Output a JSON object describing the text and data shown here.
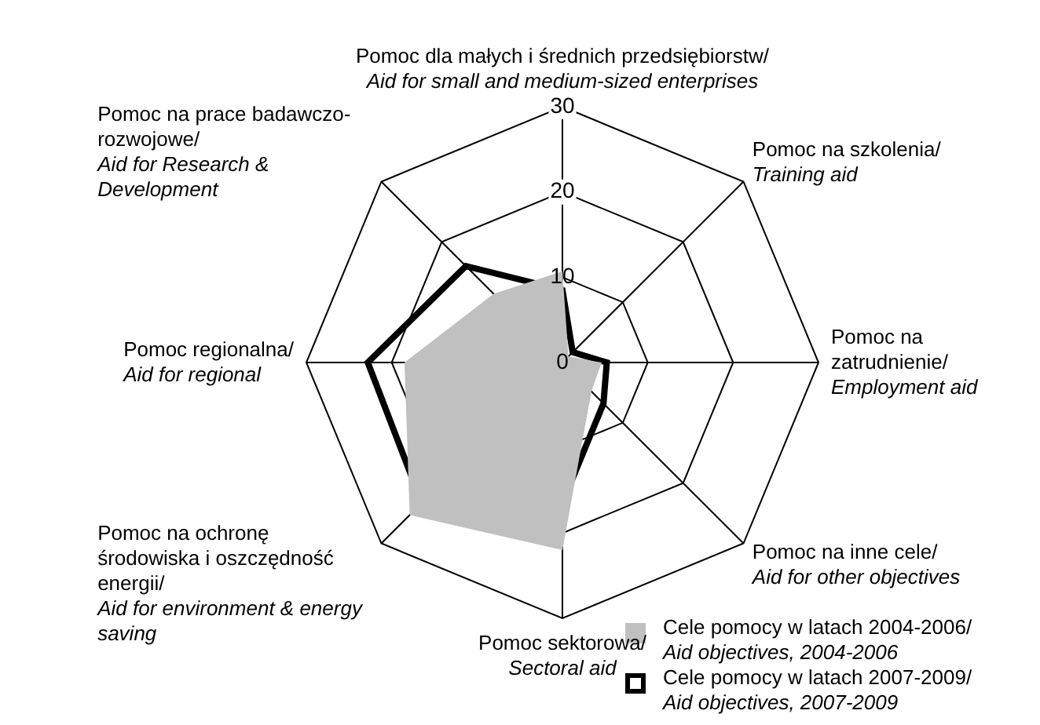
{
  "chart_data": {
    "type": "radar",
    "categories": [
      "Pomoc dla małych i średnich przedsiębiorstw/ Aid for small and medium-sized enterprises",
      "Pomoc na szkolenia/ Training aid",
      "Pomoc na zatrudnienie/ Employment aid",
      "Pomoc na inne cele/ Aid for other objectives",
      "Pomoc sektorowa/ Sectoral aid",
      "Pomoc na ochronę środowiska i oszczędność energii/ Aid for environment & energy saving",
      "Pomoc regionalna/ Aid for regional",
      "Pomoc na prace badawczo-rozwojowe/ Aid for Research & Development"
    ],
    "series": [
      {
        "name": "Cele pomocy w latach 2004-2006/ Aid objectives, 2004-2006",
        "type": "area",
        "color": "#c0c0c0",
        "values": [
          10.7,
          1,
          4.6,
          4.8,
          22,
          25.3,
          18.5,
          11.4
        ]
      },
      {
        "name": "Cele pomocy w latach 2007-2009/ Aid objectives, 2007-2009",
        "color": "#000000",
        "values": [
          8.5,
          1.7,
          5.2,
          6.8,
          16.5,
          23.3,
          22.8,
          16
        ]
      }
    ],
    "ylim": [
      0,
      30
    ],
    "yticks": [
      0,
      10,
      20,
      30
    ],
    "grid": true,
    "legend": "bottom right"
  }
}
